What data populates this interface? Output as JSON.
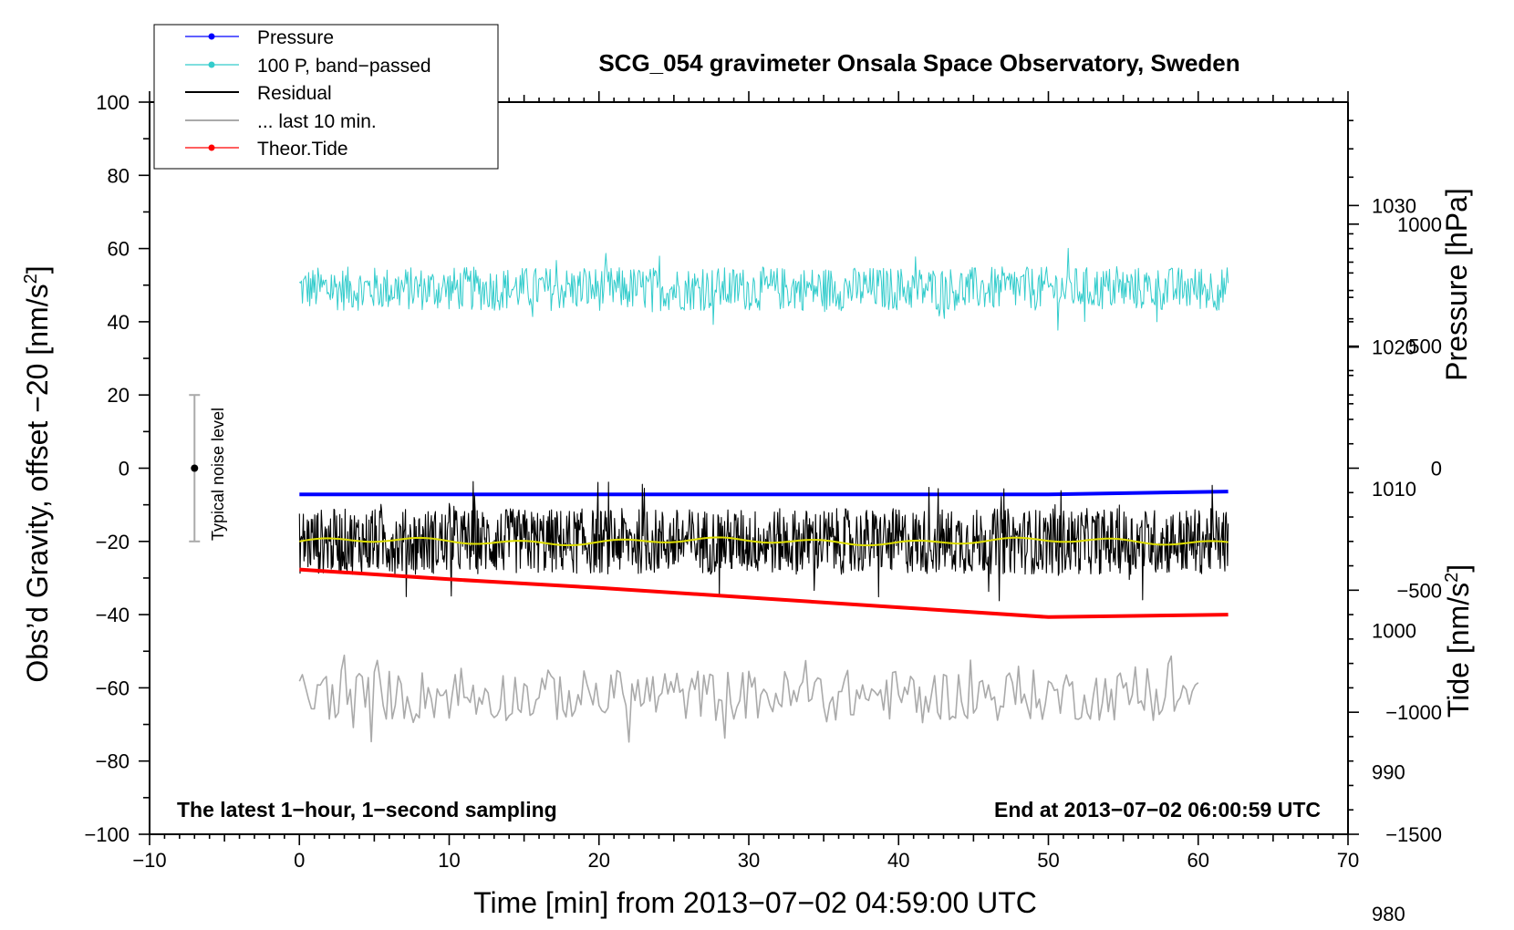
{
  "chart_data": {
    "type": "line",
    "title": "SCG_054 gravimeter Onsala Space Observatory, Sweden",
    "xlabel": "Time [min] from 2013−07−02 04:59:00 UTC",
    "ylabel_left_prefix": "Obs’d Gravity, offset −20 [nm/s",
    "ylabel_left_sup": "2",
    "ylabel_left_suffix": "]",
    "ylabel_right_pressure": "Pressure [hPa]",
    "ylabel_right_tide_prefix": "Tide [nm/s",
    "ylabel_right_tide_sup": "2",
    "ylabel_right_tide_suffix": "]",
    "xlim": [
      -10,
      70
    ],
    "ylim": [
      -100,
      100
    ],
    "pressure_lim": [
      985.6,
      1037.3
    ],
    "tide_lim": [
      -1500,
      1500
    ],
    "x_ticks": [
      "−10",
      "0",
      "10",
      "20",
      "30",
      "40",
      "50",
      "60",
      "70"
    ],
    "y_ticks": [
      "100",
      "80",
      "60",
      "40",
      "20",
      "0",
      "−20",
      "−40",
      "−60",
      "−80",
      "−100"
    ],
    "pressure_ticks": [
      "1030",
      "1020",
      "1010",
      "1000",
      "990",
      "980"
    ],
    "tide_ticks": [
      "1000",
      "500",
      "0",
      "−500",
      "−1000",
      "−1500"
    ],
    "note_left": "The latest 1−hour, 1−second sampling",
    "note_right": "End at 2013−07−02 06:00:59 UTC",
    "noise_bar_label": "Typical noise level",
    "noise_bar": {
      "x": -7,
      "center": 0,
      "half_range": 20
    },
    "legend": {
      "placement": "top-left",
      "entries": [
        {
          "label": "Pressure",
          "color": "#0000ff",
          "marker": true
        },
        {
          "label": "100 P, band−passed",
          "color": "#33cccc",
          "marker": true
        },
        {
          "label": "Residual",
          "color": "#000000",
          "marker": false
        },
        {
          "label": "... last 10 min.",
          "color": "#aaaaaa",
          "marker": false
        },
        {
          "label": "Theor.Tide",
          "color": "#ff0000",
          "marker": true
        }
      ]
    },
    "series": [
      {
        "name": "Pressure",
        "axis": "pressure",
        "color": "#0000ff",
        "x": [
          0,
          10,
          20,
          30,
          40,
          50,
          62
        ],
        "y": [
          1009.6,
          1009.6,
          1009.6,
          1009.6,
          1009.6,
          1009.6,
          1009.8
        ]
      },
      {
        "name": "100 P, band−passed",
        "axis": "left",
        "color": "#33cccc",
        "x": [
          0,
          62
        ],
        "y": [
          49,
          49
        ],
        "noise_amplitude": 6
      },
      {
        "name": "Residual",
        "axis": "left",
        "color": "#000000",
        "x": [
          0,
          62
        ],
        "y": [
          -20,
          -20
        ],
        "noise_amplitude": 9
      },
      {
        "name": "... last 10 min.",
        "axis": "left",
        "color": "#aaaaaa",
        "x": [
          0,
          60
        ],
        "y": [
          -62,
          -62
        ],
        "noise_amplitude": 7
      },
      {
        "name": "Theor.Tide",
        "axis": "tide",
        "color": "#ff0000",
        "x": [
          0,
          10,
          20,
          30,
          40,
          50,
          62
        ],
        "y": [
          -415,
          -455,
          -490,
          -530,
          -570,
          -610,
          -600
        ]
      }
    ]
  }
}
